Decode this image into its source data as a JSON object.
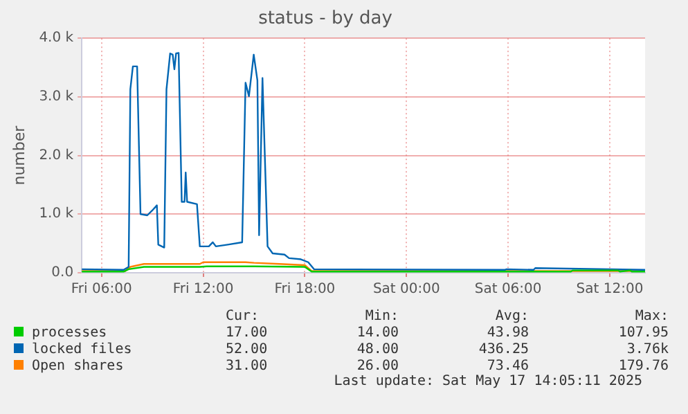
{
  "chart_data": {
    "type": "line",
    "title": "status - by day",
    "ylabel": "number",
    "xlim": [
      "2025-05-16T04:50",
      "2025-05-17T14:05"
    ],
    "xticks": [
      {
        "value": "2025-05-16T06:00",
        "label": "Fri 06:00"
      },
      {
        "value": "2025-05-16T12:00",
        "label": "Fri 12:00"
      },
      {
        "value": "2025-05-16T18:00",
        "label": "Fri 18:00"
      },
      {
        "value": "2025-05-17T00:00",
        "label": "Sat 00:00"
      },
      {
        "value": "2025-05-17T06:00",
        "label": "Sat 06:00"
      },
      {
        "value": "2025-05-17T12:00",
        "label": "Sat 12:00"
      }
    ],
    "ylim": [
      0,
      4000
    ],
    "yticks": [
      {
        "value": 0,
        "label": "0.0"
      },
      {
        "value": 1000,
        "label": "1.0 k"
      },
      {
        "value": 2000,
        "label": "2.0 k"
      },
      {
        "value": 3000,
        "label": "3.0 k"
      },
      {
        "value": 4000,
        "label": "4.0 k"
      }
    ],
    "grid": true,
    "legend": "bottom",
    "marker": "none",
    "line_style": "solid",
    "series": [
      {
        "name": "processes",
        "color": "#00cc00",
        "x": [
          "2025-05-16T04:50",
          "2025-05-16T06:12",
          "2025-05-16T07:18",
          "2025-05-16T07:36",
          "2025-05-16T08:30",
          "2025-05-16T11:48",
          "2025-05-16T12:12",
          "2025-05-16T15:00",
          "2025-05-16T18:00",
          "2025-05-16T18:24",
          "2025-05-17T09:42",
          "2025-05-17T09:48",
          "2025-05-17T12:30",
          "2025-05-17T12:36",
          "2025-05-17T13:12",
          "2025-05-17T13:18",
          "2025-05-17T14:05"
        ],
        "values": [
          20,
          20,
          20,
          60,
          100,
          100,
          110,
          110,
          100,
          20,
          20,
          40,
          40,
          20,
          40,
          20,
          20
        ]
      },
      {
        "name": "locked files",
        "color": "#0066b3",
        "x": [
          "2025-05-16T04:50",
          "2025-05-16T07:18",
          "2025-05-16T07:36",
          "2025-05-16T07:42",
          "2025-05-16T07:51",
          "2025-05-16T08:06",
          "2025-05-16T08:18",
          "2025-05-16T08:42",
          "2025-05-16T08:59",
          "2025-05-16T09:16",
          "2025-05-16T09:21",
          "2025-05-16T09:42",
          "2025-05-16T09:50",
          "2025-05-16T10:03",
          "2025-05-16T10:12",
          "2025-05-16T10:18",
          "2025-05-16T10:24",
          "2025-05-16T10:33",
          "2025-05-16T10:44",
          "2025-05-16T10:54",
          "2025-05-16T10:58",
          "2025-05-16T11:03",
          "2025-05-16T11:38",
          "2025-05-16T11:48",
          "2025-05-16T12:20",
          "2025-05-16T12:34",
          "2025-05-16T12:45",
          "2025-05-16T13:27",
          "2025-05-16T14:18",
          "2025-05-16T14:30",
          "2025-05-16T14:42",
          "2025-05-16T14:59",
          "2025-05-16T15:12",
          "2025-05-16T15:18",
          "2025-05-16T15:30",
          "2025-05-16T15:48",
          "2025-05-16T16:06",
          "2025-05-16T16:48",
          "2025-05-16T17:04",
          "2025-05-16T17:46",
          "2025-05-16T18:12",
          "2025-05-16T18:33",
          "2025-05-17T05:48",
          "2025-05-17T05:54",
          "2025-05-17T07:30",
          "2025-05-17T07:36",
          "2025-05-17T14:05"
        ],
        "values": [
          60,
          50,
          100,
          3130,
          3520,
          3520,
          1000,
          980,
          1060,
          1150,
          480,
          430,
          3130,
          3740,
          3720,
          3470,
          3740,
          3750,
          1210,
          1210,
          1710,
          1210,
          1170,
          450,
          450,
          520,
          450,
          480,
          520,
          3240,
          3010,
          3720,
          3280,
          640,
          3320,
          450,
          330,
          310,
          250,
          230,
          180,
          60,
          50,
          60,
          50,
          80,
          50
        ]
      },
      {
        "name": "Open shares",
        "color": "#ff8000",
        "x": [
          "2025-05-16T04:50",
          "2025-05-16T07:24",
          "2025-05-16T07:42",
          "2025-05-16T08:30",
          "2025-05-16T11:48",
          "2025-05-16T12:00",
          "2025-05-16T14:30",
          "2025-05-16T15:00",
          "2025-05-16T16:30",
          "2025-05-16T18:00",
          "2025-05-16T18:24",
          "2025-05-17T14:05"
        ],
        "values": [
          30,
          30,
          100,
          150,
          150,
          180,
          180,
          170,
          150,
          130,
          30,
          30
        ]
      }
    ],
    "annotations": [
      "Cur:",
      "Min:",
      "Avg:",
      "Max:",
      "17.00",
      "14.00",
      "43.98",
      "107.95",
      "52.00",
      "48.00",
      "436.25",
      "3.76k",
      "31.00",
      "26.00",
      "73.46",
      "179.76",
      "Last update: Sat May 17 14:05:11 2025"
    ]
  }
}
